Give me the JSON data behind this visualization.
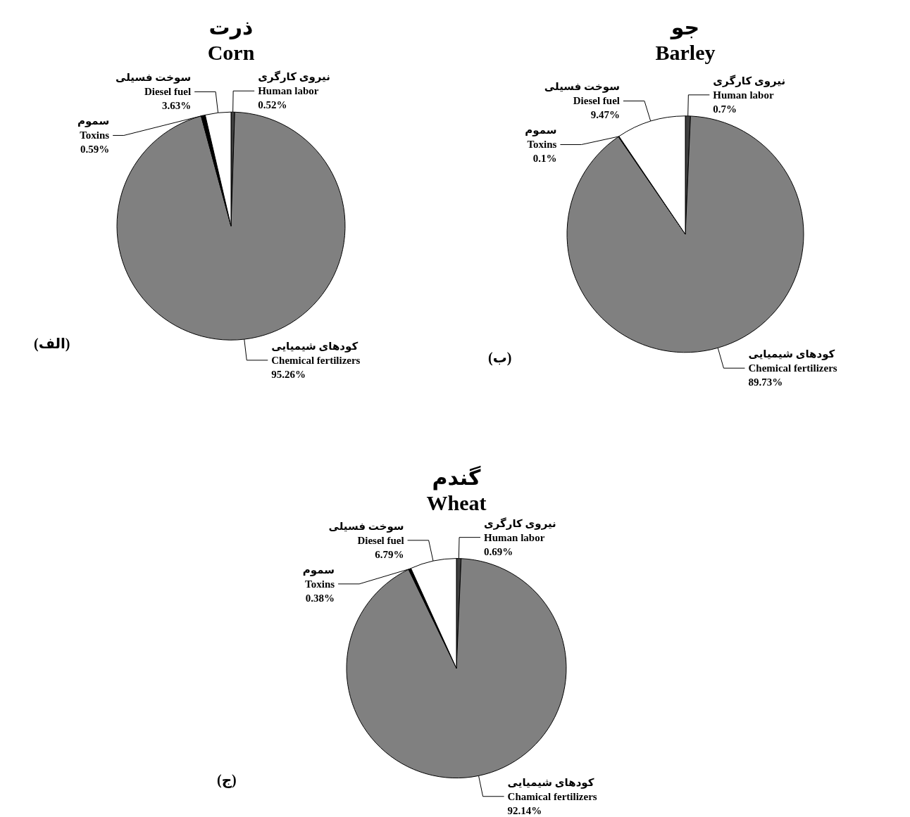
{
  "chart_data": [
    {
      "type": "pie",
      "title": "ذرت",
      "subtitle": "Corn",
      "categories": [
        "نیروی کارگری\nHuman labor",
        "کودهای شیمیایی\nChemical fertilizers",
        "سموم\nToxins",
        "سوخت فسیلی\nDiesel fuel"
      ],
      "values": [
        0.52,
        95.26,
        0.59,
        3.63
      ],
      "value_labels": [
        "0.52%",
        "95.26%",
        "0.59%",
        "3.63%"
      ],
      "colors": [
        "#404040",
        "#808080",
        "#000000",
        "#ffffff"
      ],
      "legend": false,
      "annotations": [
        "(الف)"
      ]
    },
    {
      "type": "pie",
      "title": "جو",
      "subtitle": "Barley",
      "categories": [
        "نیروی کارگری\nHuman labor",
        "کودهای شیمیایی\nChemical fertilizers",
        "سموم\nToxins",
        "سوخت فسیلی\nDiesel fuel"
      ],
      "values": [
        0.7,
        89.73,
        0.1,
        9.47
      ],
      "value_labels": [
        "0.7%",
        "89.73%",
        "0.1%",
        "9.47%"
      ],
      "colors": [
        "#404040",
        "#808080",
        "#000000",
        "#ffffff"
      ],
      "legend": false,
      "annotations": [
        "(ب)"
      ]
    },
    {
      "type": "pie",
      "title": "گندم",
      "subtitle": "Wheat",
      "categories": [
        "نیروی کارگری\nHuman labor",
        "کودهای شیمیایی\nChamical fertilizers",
        "سموم\nToxins",
        "سوخت فسیلی\nDiesel fuel"
      ],
      "values": [
        0.69,
        92.14,
        0.38,
        6.79
      ],
      "value_labels": [
        "0.69%",
        "92.14%",
        "0.38%",
        "6.79%"
      ],
      "colors": [
        "#404040",
        "#808080",
        "#000000",
        "#ffffff"
      ],
      "legend": false,
      "annotations": [
        "(ج)"
      ]
    }
  ]
}
